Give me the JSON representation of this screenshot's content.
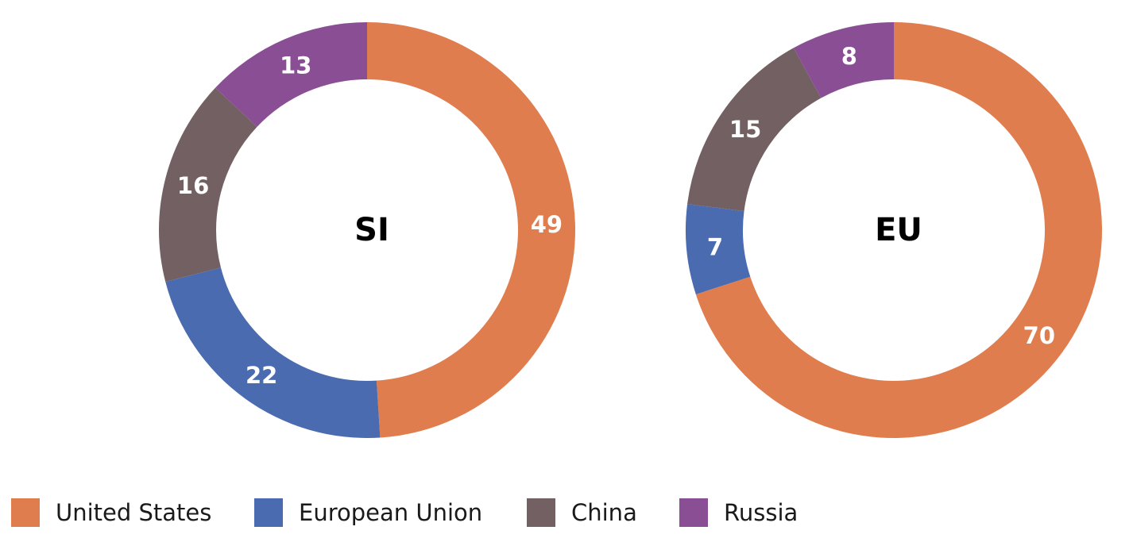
{
  "chart_data": [
    {
      "type": "donut",
      "title": "SI",
      "categories": [
        "United States",
        "European Union",
        "China",
        "Russia"
      ],
      "values": [
        49,
        22,
        16,
        13
      ],
      "colors": [
        "#e07d4e",
        "#4a6baf",
        "#736062",
        "#8a4e94"
      ]
    },
    {
      "type": "donut",
      "title": "EU",
      "categories": [
        "United States",
        "European Union",
        "China",
        "Russia"
      ],
      "values": [
        70,
        7,
        15,
        8
      ],
      "colors": [
        "#e07d4e",
        "#4a6baf",
        "#736062",
        "#8a4e94"
      ]
    }
  ]
}
